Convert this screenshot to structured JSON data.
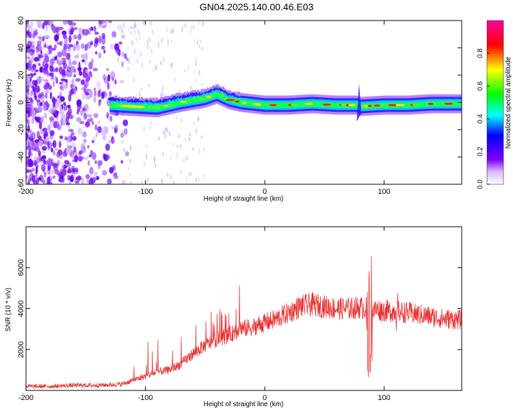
{
  "figure": {
    "title": "GN04.2025.140.00.46.E03"
  },
  "chart_data": [
    {
      "type": "heatmap",
      "xlabel": "Height of straight line (km)",
      "ylabel": "Frequency (Hz)",
      "xlim": [
        -200,
        165
      ],
      "ylim": [
        -60,
        60
      ],
      "xticks": [
        -200,
        -100,
        0,
        100
      ],
      "yticks": [
        -60,
        -40,
        -20,
        0,
        20,
        40,
        60
      ],
      "colorbar": {
        "label": "Normalized spectral amplitude",
        "range": [
          0,
          1
        ],
        "ticks": [
          0.0,
          0.2,
          0.4,
          0.6,
          0.8
        ],
        "tick_labels": [
          "0.0",
          "0.2",
          "0.4",
          "0.6",
          "0.8"
        ],
        "colormap": [
          "#ffffff",
          "#8000ff",
          "#0000ff",
          "#00ffff",
          "#00ff00",
          "#ffff00",
          "#ff0000",
          "#ff00ff"
        ]
      },
      "ridge": {
        "x": [
          -130,
          -110,
          -90,
          -70,
          -50,
          -40,
          -30,
          -20,
          0,
          20,
          40,
          60,
          78,
          80,
          100,
          120,
          140,
          165
        ],
        "y": [
          -2,
          -3,
          -4,
          0,
          3,
          6,
          2,
          0,
          -2,
          -2,
          -1,
          -2,
          -2,
          -3,
          -2,
          -2,
          -1,
          -1
        ]
      }
    },
    {
      "type": "line",
      "xlabel": "Height of straight line (km)",
      "ylabel": "SNR (10 * v/v)",
      "xlim": [
        -200,
        165
      ],
      "ylim": [
        0,
        8000
      ],
      "xticks": [
        -200,
        -100,
        0,
        100
      ],
      "yticks": [
        2000,
        4000,
        6000
      ],
      "color": "#e83030",
      "series": [
        {
          "x": [
            -200,
            -180,
            -160,
            -140,
            -120,
            -110,
            -100,
            -90,
            -80,
            -70,
            -60,
            -50,
            -40,
            -30,
            -20,
            -10,
            0,
            10,
            20,
            30,
            40,
            50,
            60,
            70,
            80,
            85,
            88,
            90,
            95,
            100,
            110,
            120,
            130,
            140,
            150,
            165
          ],
          "y": [
            200,
            200,
            250,
            250,
            300,
            500,
            700,
            900,
            1000,
            1300,
            1800,
            2200,
            2500,
            2700,
            3000,
            3100,
            3300,
            3500,
            3800,
            4100,
            4200,
            4100,
            4000,
            4000,
            4050,
            4000,
            3900,
            3900,
            3950,
            3900,
            3850,
            3800,
            3700,
            3600,
            3500,
            3450
          ]
        }
      ]
    }
  ]
}
